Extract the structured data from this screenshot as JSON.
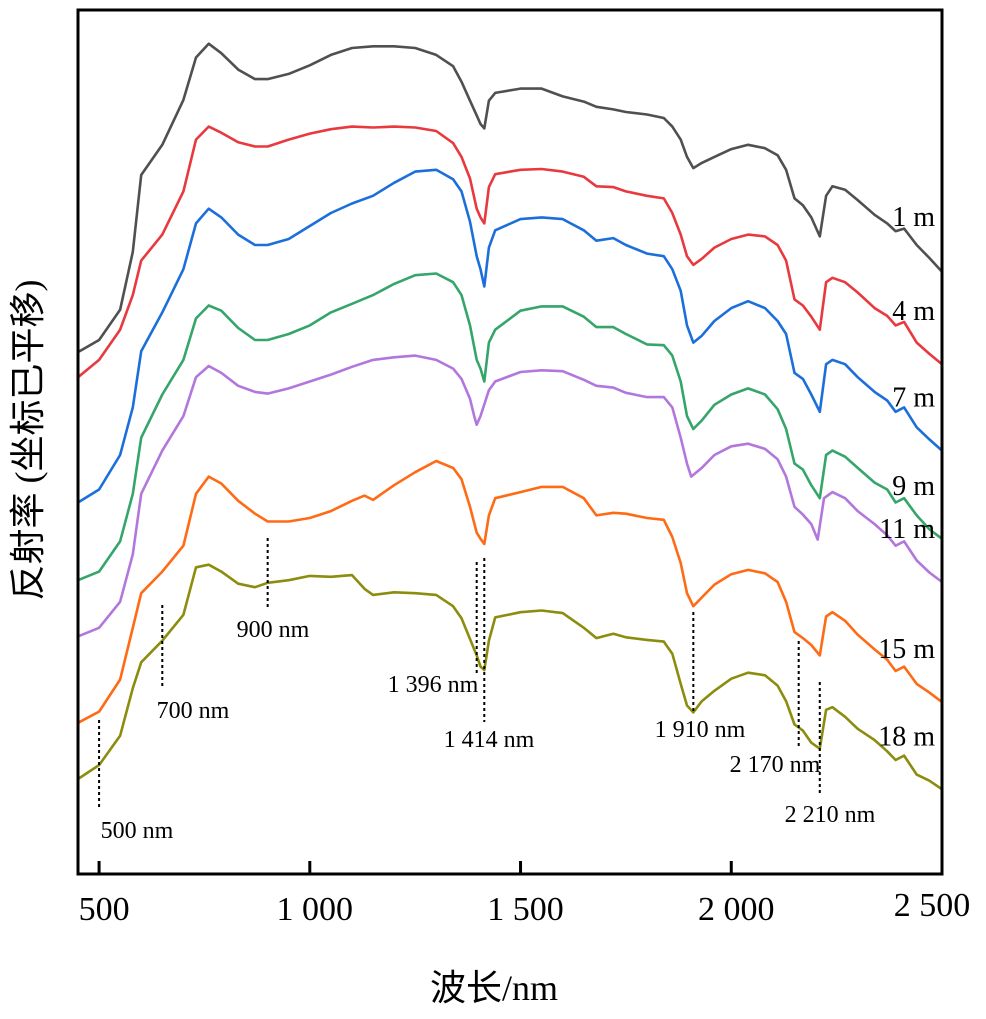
{
  "chart_data": {
    "type": "line",
    "title": "",
    "xlabel": "波长/nm",
    "ylabel": "反射率 (坐标已平移)",
    "xlim": [
      450,
      2500
    ],
    "ylim": [
      0,
      100
    ],
    "grid": false,
    "xticks": [
      500,
      1000,
      1500,
      2000,
      2500
    ],
    "xtick_labels": [
      "500",
      "1 000",
      "1 500",
      "2 000",
      "2 500"
    ],
    "yticks_shown": false,
    "legend": "inline-right",
    "series": [
      {
        "name": "1 m",
        "color": "#505050",
        "x": [
          450,
          500,
          550,
          580,
          600,
          650,
          700,
          730,
          760,
          790,
          830,
          870,
          900,
          950,
          1000,
          1050,
          1100,
          1150,
          1200,
          1250,
          1300,
          1340,
          1360,
          1380,
          1396,
          1405,
          1414,
          1425,
          1440,
          1500,
          1550,
          1600,
          1650,
          1680,
          1720,
          1750,
          1800,
          1840,
          1860,
          1880,
          1895,
          1910,
          1930,
          1960,
          2000,
          2040,
          2080,
          2110,
          2130,
          2150,
          2170,
          2190,
          2210,
          2225,
          2240,
          2270,
          2300,
          2340,
          2370,
          2390,
          2410,
          2440,
          2470,
          2500
        ],
        "y": [
          60.4,
          61.8,
          65.3,
          72.0,
          80.9,
          84.4,
          89.6,
          94.5,
          96.1,
          95.0,
          93.1,
          92.0,
          92.0,
          92.6,
          93.6,
          94.8,
          95.6,
          95.8,
          95.8,
          95.6,
          94.8,
          93.5,
          91.7,
          89.5,
          87.8,
          86.8,
          86.3,
          89.5,
          90.4,
          90.9,
          90.9,
          90.0,
          89.4,
          88.8,
          88.5,
          88.2,
          87.9,
          87.5,
          86.5,
          85.0,
          83.0,
          81.7,
          82.3,
          83.0,
          83.9,
          84.4,
          84.0,
          83.2,
          81.5,
          78.2,
          77.4,
          76.0,
          73.8,
          78.5,
          79.6,
          79.2,
          78.0,
          76.3,
          75.3,
          74.4,
          74.7,
          72.8,
          71.3,
          69.7
        ]
      },
      {
        "name": "4 m",
        "color": "#e8393f",
        "x": [
          450,
          500,
          550,
          580,
          600,
          650,
          700,
          730,
          760,
          790,
          830,
          870,
          900,
          950,
          1000,
          1050,
          1100,
          1150,
          1200,
          1250,
          1300,
          1340,
          1360,
          1380,
          1396,
          1405,
          1414,
          1425,
          1440,
          1500,
          1550,
          1600,
          1650,
          1680,
          1720,
          1750,
          1800,
          1840,
          1860,
          1880,
          1895,
          1910,
          1930,
          1960,
          2000,
          2040,
          2080,
          2110,
          2130,
          2150,
          2170,
          2190,
          2210,
          2225,
          2240,
          2270,
          2300,
          2340,
          2370,
          2390,
          2410,
          2440,
          2470,
          2500
        ],
        "y": [
          57.5,
          59.5,
          63.0,
          67.0,
          71.0,
          74.0,
          79.0,
          85.0,
          86.5,
          85.8,
          84.7,
          84.2,
          84.2,
          85.0,
          85.7,
          86.2,
          86.5,
          86.4,
          86.5,
          86.4,
          86.0,
          84.6,
          83.0,
          80.5,
          77.0,
          76.0,
          75.3,
          79.5,
          81.0,
          81.5,
          81.6,
          81.3,
          80.7,
          79.6,
          79.5,
          79.0,
          78.5,
          78.2,
          76.5,
          74.0,
          71.5,
          70.5,
          71.2,
          72.5,
          73.5,
          74.0,
          73.8,
          72.8,
          71.0,
          66.5,
          65.8,
          64.5,
          63.0,
          68.5,
          69.0,
          68.5,
          67.3,
          65.5,
          64.6,
          63.5,
          63.9,
          61.5,
          60.2,
          59.0
        ]
      },
      {
        "name": "7 m",
        "color": "#1c6fdb",
        "x": [
          450,
          500,
          550,
          580,
          600,
          650,
          700,
          730,
          760,
          790,
          830,
          870,
          900,
          950,
          1000,
          1050,
          1100,
          1150,
          1200,
          1250,
          1300,
          1340,
          1360,
          1380,
          1396,
          1405,
          1414,
          1425,
          1440,
          1500,
          1550,
          1600,
          1650,
          1680,
          1720,
          1750,
          1800,
          1840,
          1860,
          1880,
          1895,
          1910,
          1930,
          1960,
          2000,
          2040,
          2080,
          2110,
          2130,
          2150,
          2170,
          2190,
          2210,
          2225,
          2240,
          2270,
          2300,
          2340,
          2370,
          2390,
          2410,
          2440,
          2470,
          2500
        ],
        "y": [
          43.0,
          44.5,
          48.5,
          54.0,
          60.5,
          65.0,
          70.0,
          75.3,
          77.0,
          76.0,
          74.0,
          72.8,
          72.8,
          73.5,
          75.0,
          76.5,
          77.6,
          78.5,
          80.0,
          81.3,
          81.5,
          80.4,
          79.0,
          75.5,
          71.5,
          70.0,
          68.0,
          72.5,
          74.5,
          75.8,
          76.0,
          75.8,
          74.5,
          73.3,
          73.6,
          72.8,
          71.8,
          71.5,
          70.0,
          67.5,
          63.5,
          61.5,
          62.3,
          64.0,
          65.5,
          66.3,
          65.5,
          64.0,
          62.5,
          58.0,
          57.3,
          55.5,
          53.5,
          59.0,
          59.5,
          59.0,
          57.5,
          55.8,
          54.8,
          53.5,
          54.0,
          51.7,
          50.3,
          49.0
        ]
      },
      {
        "name": "9 m",
        "color": "#35a56a",
        "x": [
          450,
          500,
          550,
          580,
          600,
          650,
          700,
          730,
          760,
          790,
          830,
          870,
          900,
          950,
          1000,
          1050,
          1100,
          1150,
          1200,
          1250,
          1300,
          1340,
          1360,
          1380,
          1396,
          1405,
          1414,
          1425,
          1440,
          1500,
          1550,
          1600,
          1650,
          1680,
          1720,
          1750,
          1800,
          1840,
          1860,
          1880,
          1895,
          1910,
          1930,
          1960,
          2000,
          2040,
          2080,
          2110,
          2130,
          2150,
          2170,
          2190,
          2210,
          2225,
          2240,
          2270,
          2300,
          2340,
          2370,
          2390,
          2410,
          2440,
          2470,
          2500
        ],
        "y": [
          34.0,
          35.0,
          38.5,
          44.0,
          50.5,
          55.5,
          59.5,
          64.3,
          65.8,
          65.2,
          63.2,
          61.8,
          61.8,
          62.5,
          63.5,
          65.0,
          66.0,
          67.0,
          68.3,
          69.3,
          69.5,
          68.5,
          67.0,
          63.5,
          59.5,
          58.5,
          57.0,
          61.5,
          63.0,
          65.2,
          65.7,
          65.7,
          64.5,
          63.3,
          63.3,
          62.5,
          61.3,
          61.2,
          60.0,
          57.0,
          53.0,
          51.5,
          52.5,
          54.3,
          55.5,
          56.2,
          55.5,
          53.8,
          51.5,
          47.5,
          46.8,
          45.0,
          43.5,
          48.5,
          49.0,
          48.3,
          47.0,
          45.3,
          44.5,
          43.0,
          43.5,
          41.5,
          39.9,
          38.8
        ]
      },
      {
        "name": "11 m",
        "color": "#b277dc",
        "x": [
          450,
          500,
          550,
          580,
          600,
          650,
          700,
          730,
          760,
          790,
          830,
          870,
          900,
          950,
          1000,
          1050,
          1100,
          1150,
          1200,
          1250,
          1300,
          1340,
          1360,
          1380,
          1390,
          1396,
          1405,
          1425,
          1440,
          1500,
          1550,
          1600,
          1650,
          1680,
          1720,
          1750,
          1800,
          1840,
          1860,
          1880,
          1895,
          1905,
          1930,
          1960,
          2000,
          2040,
          2080,
          2110,
          2130,
          2150,
          2170,
          2190,
          2205,
          2220,
          2240,
          2270,
          2300,
          2340,
          2370,
          2390,
          2410,
          2440,
          2470,
          2500
        ],
        "y": [
          27.5,
          28.5,
          31.5,
          37.0,
          44.0,
          49.0,
          53.0,
          57.5,
          58.8,
          58.0,
          56.5,
          55.8,
          55.6,
          56.2,
          57.0,
          57.8,
          58.7,
          59.5,
          59.8,
          60.0,
          59.5,
          58.5,
          57.3,
          55.0,
          53.0,
          52.0,
          53.0,
          56.0,
          57.0,
          58.1,
          58.3,
          58.2,
          57.2,
          56.5,
          56.3,
          55.7,
          55.2,
          55.2,
          54.0,
          50.5,
          47.5,
          46.0,
          47.0,
          48.5,
          49.5,
          49.8,
          49.2,
          48.0,
          46.0,
          42.5,
          41.6,
          40.5,
          38.7,
          43.5,
          44.2,
          43.5,
          42.0,
          40.5,
          39.2,
          38.0,
          38.5,
          36.3,
          34.9,
          33.8
        ]
      },
      {
        "name": "15 m",
        "color": "#ff6a14",
        "x": [
          450,
          500,
          550,
          580,
          600,
          650,
          700,
          730,
          760,
          790,
          830,
          870,
          900,
          950,
          1000,
          1050,
          1100,
          1130,
          1150,
          1200,
          1250,
          1300,
          1340,
          1360,
          1380,
          1396,
          1405,
          1414,
          1425,
          1440,
          1500,
          1550,
          1600,
          1650,
          1680,
          1720,
          1750,
          1800,
          1840,
          1860,
          1880,
          1895,
          1910,
          1930,
          1960,
          2000,
          2040,
          2080,
          2110,
          2130,
          2150,
          2170,
          2190,
          2210,
          2225,
          2240,
          2270,
          2300,
          2340,
          2370,
          2390,
          2410,
          2440,
          2470,
          2500
        ],
        "y": [
          17.5,
          18.8,
          22.5,
          28.5,
          32.5,
          35.0,
          38.0,
          44.0,
          46.0,
          45.2,
          43.2,
          41.7,
          40.8,
          40.8,
          41.2,
          42.0,
          43.2,
          43.8,
          43.3,
          45.0,
          46.5,
          47.8,
          47.0,
          45.7,
          42.5,
          39.5,
          38.8,
          38.2,
          41.5,
          43.5,
          44.2,
          44.8,
          44.8,
          43.5,
          41.5,
          41.8,
          41.7,
          41.2,
          41.0,
          39.0,
          36.0,
          32.5,
          31.0,
          32.0,
          33.5,
          34.7,
          35.2,
          34.8,
          33.8,
          31.5,
          28.0,
          27.3,
          26.5,
          25.3,
          29.8,
          30.3,
          29.3,
          27.7,
          26.0,
          24.8,
          23.5,
          24.0,
          22.0,
          21.0,
          19.9
        ]
      },
      {
        "name": "18 m",
        "color": "#8c8c0f",
        "x": [
          450,
          500,
          550,
          580,
          600,
          650,
          700,
          730,
          760,
          790,
          830,
          870,
          900,
          950,
          1000,
          1050,
          1100,
          1130,
          1150,
          1200,
          1250,
          1300,
          1340,
          1360,
          1380,
          1396,
          1405,
          1414,
          1425,
          1440,
          1500,
          1550,
          1600,
          1650,
          1680,
          1720,
          1750,
          1800,
          1840,
          1860,
          1880,
          1895,
          1910,
          1930,
          1960,
          2000,
          2040,
          2080,
          2110,
          2130,
          2150,
          2170,
          2190,
          2210,
          2225,
          2240,
          2270,
          2300,
          2340,
          2370,
          2390,
          2410,
          2440,
          2470,
          2500
        ],
        "y": [
          11.0,
          12.6,
          16.0,
          21.5,
          24.5,
          27.0,
          30.0,
          35.5,
          35.8,
          35.0,
          33.6,
          33.2,
          33.7,
          34.0,
          34.5,
          34.4,
          34.6,
          33.0,
          32.3,
          32.6,
          32.5,
          32.3,
          31.0,
          29.6,
          27.2,
          25.3,
          24.0,
          23.6,
          27.0,
          29.7,
          30.3,
          30.5,
          30.2,
          28.5,
          27.3,
          27.8,
          27.4,
          27.1,
          26.9,
          25.5,
          22.0,
          19.5,
          18.7,
          20.0,
          21.2,
          22.6,
          23.3,
          23.0,
          21.8,
          20.0,
          17.3,
          16.6,
          15.2,
          14.5,
          19.0,
          19.3,
          18.2,
          16.8,
          15.5,
          14.2,
          13.2,
          13.7,
          11.5,
          10.8,
          9.8
        ]
      }
    ],
    "annotations": [
      {
        "label": "500 nm",
        "x": 500
      },
      {
        "label": "700 nm",
        "x": 650
      },
      {
        "label": "900 nm",
        "x": 900
      },
      {
        "label": "1 396 nm",
        "x": 1396
      },
      {
        "label": "1 414 nm",
        "x": 1414
      },
      {
        "label": "1 910 nm",
        "x": 1910
      },
      {
        "label": "2 170 nm",
        "x": 2160
      },
      {
        "label": "2 210 nm",
        "x": 2210
      }
    ]
  }
}
